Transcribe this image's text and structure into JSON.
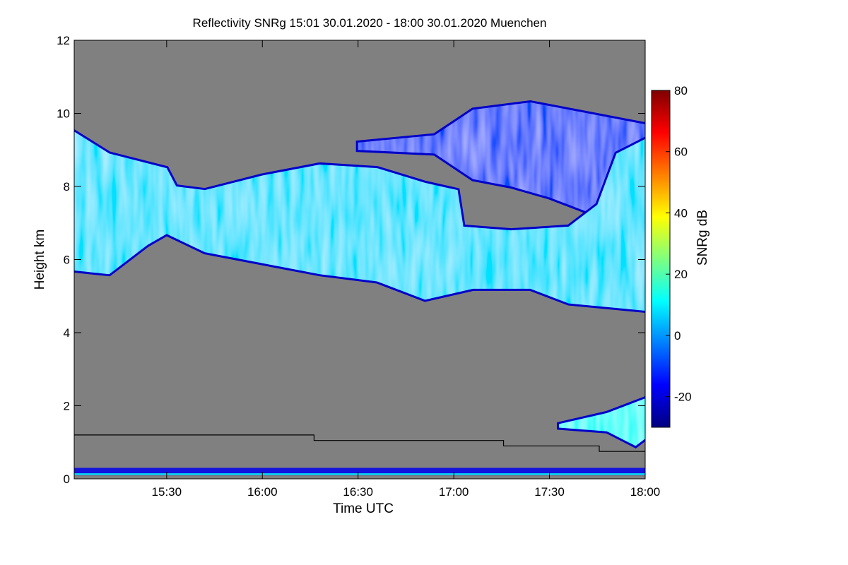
{
  "chart_data": {
    "type": "heatmap",
    "title": "Reflectivity SNRg   15:01 30.01.2020 - 18:00 30.01.2020 Muenchen",
    "xlabel": "Time UTC",
    "ylabel": "Height km",
    "colorbar_label": "SNRg dB",
    "x_unit": "hours UTC",
    "xlim": [
      15.017,
      18.0
    ],
    "ylim": [
      0,
      12
    ],
    "x_ticks": [
      {
        "value": 15.5,
        "label": "15:30"
      },
      {
        "value": 16.0,
        "label": "16:00"
      },
      {
        "value": 16.5,
        "label": "16:30"
      },
      {
        "value": 17.0,
        "label": "17:00"
      },
      {
        "value": 17.5,
        "label": "17:30"
      },
      {
        "value": 18.0,
        "label": "18:00"
      }
    ],
    "y_ticks": [
      {
        "value": 0,
        "label": "0"
      },
      {
        "value": 2,
        "label": "2"
      },
      {
        "value": 4,
        "label": "4"
      },
      {
        "value": 6,
        "label": "6"
      },
      {
        "value": 8,
        "label": "8"
      },
      {
        "value": 10,
        "label": "10"
      },
      {
        "value": 12,
        "label": "12"
      }
    ],
    "colorbar": {
      "range": [
        -30,
        80
      ],
      "ticks": [
        {
          "value": -20,
          "label": "-20"
        },
        {
          "value": 0,
          "label": "0"
        },
        {
          "value": 20,
          "label": "20"
        },
        {
          "value": 40,
          "label": "40"
        },
        {
          "value": 60,
          "label": "60"
        },
        {
          "value": 80,
          "label": "80"
        }
      ],
      "colormap": [
        "#00007f",
        "#0000ff",
        "#007fff",
        "#00ffff",
        "#7fff7f",
        "#ffff00",
        "#ff7f00",
        "#ff0000",
        "#7f0000"
      ]
    },
    "background_color": "#808080",
    "cloud_main": {
      "top_km": [
        [
          15.017,
          9.5
        ],
        [
          15.2,
          8.9
        ],
        [
          15.5,
          8.5
        ],
        [
          15.55,
          8.0
        ],
        [
          15.7,
          7.9
        ],
        [
          16.0,
          8.3
        ],
        [
          16.3,
          8.6
        ],
        [
          16.6,
          8.5
        ],
        [
          16.85,
          8.1
        ],
        [
          17.02,
          7.9
        ],
        [
          17.05,
          6.9
        ],
        [
          17.3,
          6.8
        ],
        [
          17.6,
          6.9
        ],
        [
          17.75,
          7.5
        ],
        [
          17.85,
          8.9
        ],
        [
          18.0,
          9.3
        ]
      ],
      "base_km": [
        [
          15.017,
          5.7
        ],
        [
          15.2,
          5.6
        ],
        [
          15.4,
          6.4
        ],
        [
          15.5,
          6.7
        ],
        [
          15.7,
          6.2
        ],
        [
          16.0,
          5.9
        ],
        [
          16.3,
          5.6
        ],
        [
          16.6,
          5.4
        ],
        [
          16.85,
          4.9
        ],
        [
          17.1,
          5.2
        ],
        [
          17.4,
          5.2
        ],
        [
          17.6,
          4.8
        ],
        [
          17.8,
          4.7
        ],
        [
          18.0,
          4.6
        ]
      ],
      "core_snr_db": 8
    },
    "cloud_upper": {
      "top_km": [
        [
          16.5,
          9.2
        ],
        [
          16.9,
          9.4
        ],
        [
          17.1,
          10.1
        ],
        [
          17.4,
          10.3
        ],
        [
          17.7,
          10.0
        ],
        [
          18.0,
          9.7
        ]
      ],
      "base_km": [
        [
          16.5,
          9.0
        ],
        [
          16.9,
          8.9
        ],
        [
          17.1,
          8.2
        ],
        [
          17.3,
          8.0
        ],
        [
          17.5,
          7.7
        ],
        [
          17.7,
          7.3
        ],
        [
          18.0,
          7.2
        ]
      ],
      "core_snr_db": -8
    },
    "low_echo": {
      "top_km": [
        [
          17.55,
          1.5
        ],
        [
          17.8,
          1.8
        ],
        [
          18.0,
          2.2
        ]
      ],
      "base_km": [
        [
          17.55,
          1.4
        ],
        [
          17.8,
          1.3
        ],
        [
          17.95,
          0.9
        ],
        [
          18.0,
          1.1
        ]
      ],
      "core_snr_db": 12
    },
    "boundary_layer_line": {
      "color": "#000000",
      "points": [
        [
          15.017,
          1.2
        ],
        [
          16.27,
          1.2
        ],
        [
          16.27,
          1.05
        ],
        [
          17.26,
          1.05
        ],
        [
          17.26,
          0.9
        ],
        [
          17.76,
          0.9
        ],
        [
          17.76,
          0.75
        ],
        [
          18.0,
          0.75
        ]
      ]
    },
    "near_ground_echo_km": [
      0.1,
      0.3
    ]
  }
}
